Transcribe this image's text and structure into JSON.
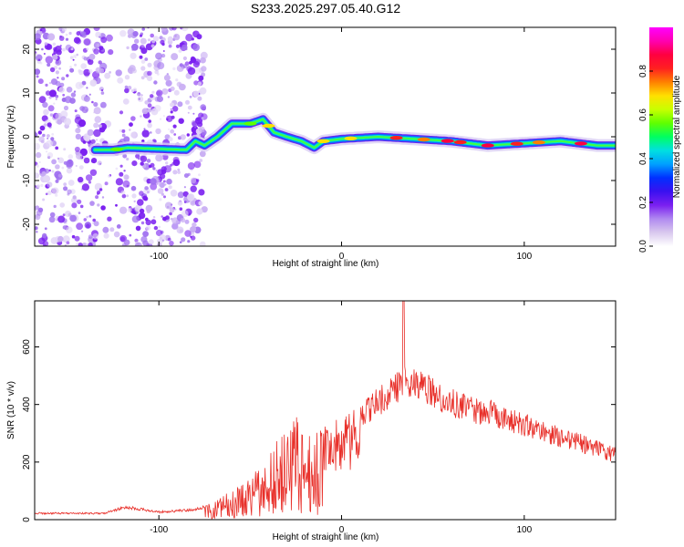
{
  "chart_data": [
    {
      "type": "heatmap",
      "title": "S233.2025.297.05.40.G12",
      "xlabel": "Height of straight line (km)",
      "ylabel": "Frequency (Hz)",
      "xlim": [
        -168,
        150
      ],
      "ylim": [
        -25,
        25
      ],
      "x_ticks": [
        -100,
        0,
        100
      ],
      "y_ticks": [
        -20,
        -10,
        0,
        10,
        20
      ],
      "colorbar": {
        "label": "Normalized spectral amplitude",
        "range": [
          0.0,
          1.0
        ],
        "ticks": [
          0.0,
          0.2,
          0.4,
          0.6,
          0.8
        ],
        "colors": [
          "#ffffff",
          "#d9c8ee",
          "#b089f0",
          "#7a1ff0",
          "#3a10f0",
          "#0030ff",
          "#00a0ff",
          "#00e0e0",
          "#00ff60",
          "#60ff00",
          "#c8ff00",
          "#ffe000",
          "#ff8000",
          "#ff2020",
          "#ff0040",
          "#ff00b0",
          "#ff00ff"
        ]
      },
      "trace": [
        {
          "x": -135,
          "y": -3
        },
        {
          "x": -125,
          "y": -3
        },
        {
          "x": -117,
          "y": -2.5
        },
        {
          "x": -85,
          "y": -3
        },
        {
          "x": -80,
          "y": -1
        },
        {
          "x": -75,
          "y": -2
        },
        {
          "x": -68,
          "y": 0
        },
        {
          "x": -60,
          "y": 3
        },
        {
          "x": -50,
          "y": 3
        },
        {
          "x": -43,
          "y": 4
        },
        {
          "x": -37,
          "y": 1
        },
        {
          "x": -30,
          "y": 0
        },
        {
          "x": -22,
          "y": -1
        },
        {
          "x": -15,
          "y": -2.5
        },
        {
          "x": -10,
          "y": -1
        },
        {
          "x": 0,
          "y": -0.5
        },
        {
          "x": 20,
          "y": 0
        },
        {
          "x": 40,
          "y": -0.5
        },
        {
          "x": 60,
          "y": -1
        },
        {
          "x": 80,
          "y": -2
        },
        {
          "x": 100,
          "y": -1.5
        },
        {
          "x": 120,
          "y": -1
        },
        {
          "x": 140,
          "y": -2
        },
        {
          "x": 150,
          "y": -2
        }
      ]
    },
    {
      "type": "line",
      "xlabel": "Height of straight line (km)",
      "ylabel": "SNR (10 * v/v)",
      "xlim": [
        -168,
        150
      ],
      "ylim": [
        0,
        760
      ],
      "x_ticks": [
        -100,
        0,
        100
      ],
      "y_ticks": [
        0,
        200,
        400,
        600
      ],
      "color": "#e8302a",
      "envelope": [
        {
          "x": -168,
          "y": 25
        },
        {
          "x": -130,
          "y": 25
        },
        {
          "x": -118,
          "y": 50
        },
        {
          "x": -100,
          "y": 30
        },
        {
          "x": -80,
          "y": 40
        },
        {
          "x": -70,
          "y": 60
        },
        {
          "x": -60,
          "y": 110
        },
        {
          "x": -50,
          "y": 150
        },
        {
          "x": -40,
          "y": 230
        },
        {
          "x": -33,
          "y": 300
        },
        {
          "x": -25,
          "y": 360
        },
        {
          "x": -18,
          "y": 300
        },
        {
          "x": -10,
          "y": 320
        },
        {
          "x": 0,
          "y": 360
        },
        {
          "x": 10,
          "y": 400
        },
        {
          "x": 20,
          "y": 460
        },
        {
          "x": 30,
          "y": 510
        },
        {
          "x": 35,
          "y": 540
        },
        {
          "x": 45,
          "y": 520
        },
        {
          "x": 55,
          "y": 470
        },
        {
          "x": 70,
          "y": 430
        },
        {
          "x": 85,
          "y": 410
        },
        {
          "x": 100,
          "y": 370
        },
        {
          "x": 120,
          "y": 320
        },
        {
          "x": 135,
          "y": 290
        },
        {
          "x": 150,
          "y": 250
        }
      ],
      "peak": {
        "x": 34,
        "y": 760
      }
    }
  ]
}
